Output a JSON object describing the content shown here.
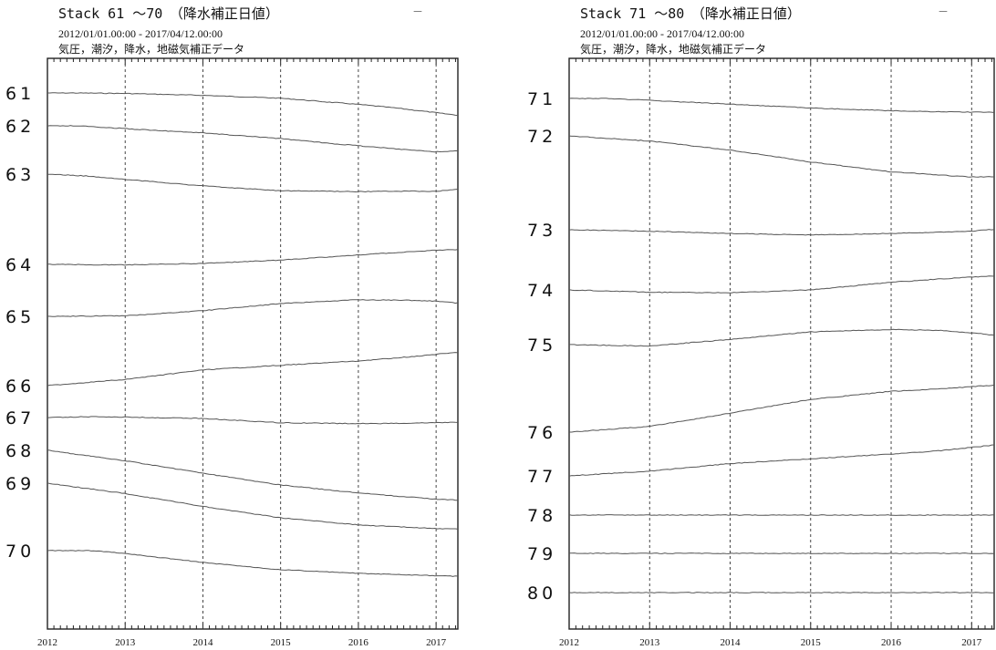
{
  "chart_data": [
    {
      "type": "line",
      "title": "Stack 61 ～70　（降水補正日値）",
      "period": "2012/01/01.00:00 - 2017/04/12.00:00",
      "corrections": "気圧，潮汐，降水，地磁気補正データ",
      "corner_mark": "－",
      "x_tick_labels": [
        "2012",
        "2013",
        "2014",
        "2015",
        "2016",
        "2017"
      ],
      "x_range": [
        2012.0,
        2017.28
      ],
      "y_axis": "none",
      "vertical_grid": "dashed at year boundaries 2013-2017",
      "series": [
        {
          "name": "61",
          "points": [
            [
              2012,
              0.0
            ],
            [
              2012.4,
              0.0
            ],
            [
              2013,
              -0.1
            ],
            [
              2014,
              -0.5
            ],
            [
              2015,
              -1.1
            ],
            [
              2015.6,
              -1.9
            ],
            [
              2016,
              -2.4
            ],
            [
              2016.5,
              -3.2
            ],
            [
              2017.28,
              -4.7
            ]
          ]
        },
        {
          "name": "62",
          "points": [
            [
              2012,
              0.0
            ],
            [
              2012.4,
              0.0
            ],
            [
              2013,
              -0.6
            ],
            [
              2014,
              -1.5
            ],
            [
              2015,
              -2.7
            ],
            [
              2015.7,
              -3.8
            ],
            [
              2016,
              -4.2
            ],
            [
              2016.6,
              -5.0
            ],
            [
              2017,
              -5.5
            ],
            [
              2017.28,
              -5.3
            ]
          ]
        },
        {
          "name": "63",
          "points": [
            [
              2012,
              0.0
            ],
            [
              2012.5,
              -0.4
            ],
            [
              2013,
              -1.1
            ],
            [
              2014,
              -2.5
            ],
            [
              2015,
              -3.5
            ],
            [
              2016,
              -3.7
            ],
            [
              2016.6,
              -3.6
            ],
            [
              2017,
              -3.6
            ],
            [
              2017.28,
              -3.2
            ]
          ]
        },
        {
          "name": "64",
          "points": [
            [
              2012,
              0.0
            ],
            [
              2013,
              -0.1
            ],
            [
              2014,
              0.2
            ],
            [
              2015,
              0.9
            ],
            [
              2016,
              2.0
            ],
            [
              2016.5,
              2.5
            ],
            [
              2017,
              3.0
            ],
            [
              2017.28,
              3.1
            ]
          ]
        },
        {
          "name": "65",
          "points": [
            [
              2012,
              0.0
            ],
            [
              2013,
              0.1
            ],
            [
              2014,
              1.2
            ],
            [
              2015,
              2.7
            ],
            [
              2016,
              3.5
            ],
            [
              2016.6,
              3.4
            ],
            [
              2017,
              3.2
            ],
            [
              2017.28,
              2.8
            ]
          ]
        },
        {
          "name": "66",
          "points": [
            [
              2012,
              0.0
            ],
            [
              2013,
              1.3
            ],
            [
              2014,
              3.3
            ],
            [
              2015,
              4.3
            ],
            [
              2016,
              5.2
            ],
            [
              2016.6,
              6.0
            ],
            [
              2017,
              6.6
            ],
            [
              2017.28,
              7.0
            ]
          ]
        },
        {
          "name": "67",
          "points": [
            [
              2012,
              0.0
            ],
            [
              2012.6,
              0.2
            ],
            [
              2013,
              0.1
            ],
            [
              2014,
              -0.2
            ],
            [
              2015,
              -1.1
            ],
            [
              2016,
              -1.3
            ],
            [
              2016.6,
              -1.2
            ],
            [
              2017,
              -1.1
            ],
            [
              2017.28,
              -1.0
            ]
          ]
        },
        {
          "name": "68",
          "points": [
            [
              2012,
              0.0
            ],
            [
              2013,
              -2.2
            ],
            [
              2014,
              -4.8
            ],
            [
              2015,
              -7.3
            ],
            [
              2016,
              -9.0
            ],
            [
              2017,
              -10.3
            ],
            [
              2017.28,
              -10.5
            ]
          ]
        },
        {
          "name": "69",
          "points": [
            [
              2012,
              0.0
            ],
            [
              2013,
              -2.2
            ],
            [
              2014,
              -4.9
            ],
            [
              2015,
              -7.3
            ],
            [
              2016,
              -8.8
            ],
            [
              2017,
              -9.6
            ],
            [
              2017.28,
              -9.7
            ]
          ]
        },
        {
          "name": "70",
          "points": [
            [
              2012,
              0.0
            ],
            [
              2012.6,
              0.0
            ],
            [
              2013,
              -0.6
            ],
            [
              2014,
              -2.5
            ],
            [
              2015,
              -4.0
            ],
            [
              2016,
              -4.8
            ],
            [
              2017,
              -5.3
            ],
            [
              2017.28,
              -5.4
            ]
          ]
        }
      ]
    },
    {
      "type": "line",
      "title": "Stack 71 ～80　（降水補正日値）",
      "period": "2012/01/01.00:00 - 2017/04/12.00:00",
      "corrections": "気圧，潮汐，降水，地磁気補正データ",
      "corner_mark": "－",
      "x_tick_labels": [
        "2012",
        "2013",
        "2014",
        "2015",
        "2016",
        "2017"
      ],
      "x_range": [
        2012.0,
        2017.28
      ],
      "y_axis": "none",
      "vertical_grid": "dashed at year boundaries 2013-2017",
      "series": [
        {
          "name": "71",
          "points": [
            [
              2012,
              0.0
            ],
            [
              2012.5,
              0.0
            ],
            [
              2013,
              -0.4
            ],
            [
              2014,
              -1.2
            ],
            [
              2015,
              -2.0
            ],
            [
              2016,
              -2.6
            ],
            [
              2016.5,
              -2.8
            ],
            [
              2017,
              -2.9
            ],
            [
              2017.28,
              -2.9
            ]
          ]
        },
        {
          "name": "72",
          "points": [
            [
              2012,
              0.0
            ],
            [
              2013,
              -1.1
            ],
            [
              2014,
              -3.0
            ],
            [
              2015,
              -5.5
            ],
            [
              2016,
              -7.6
            ],
            [
              2017,
              -8.7
            ],
            [
              2017.28,
              -8.6
            ]
          ]
        },
        {
          "name": "73",
          "points": [
            [
              2012,
              0.0
            ],
            [
              2013,
              -0.3
            ],
            [
              2014,
              -0.8
            ],
            [
              2015,
              -1.1
            ],
            [
              2016,
              -0.8
            ],
            [
              2017,
              -0.3
            ],
            [
              2017.28,
              0.1
            ]
          ]
        },
        {
          "name": "74",
          "points": [
            [
              2012,
              0.0
            ],
            [
              2013,
              -0.5
            ],
            [
              2014,
              -0.6
            ],
            [
              2015,
              0.0
            ],
            [
              2016,
              1.6
            ],
            [
              2016.6,
              2.3
            ],
            [
              2017,
              2.7
            ],
            [
              2017.28,
              2.9
            ]
          ]
        },
        {
          "name": "75",
          "points": [
            [
              2012,
              0.0
            ],
            [
              2013,
              -0.3
            ],
            [
              2014,
              1.1
            ],
            [
              2015,
              2.7
            ],
            [
              2016,
              3.2
            ],
            [
              2016.6,
              3.0
            ],
            [
              2017,
              2.5
            ],
            [
              2017.28,
              2.0
            ]
          ]
        },
        {
          "name": "76",
          "points": [
            [
              2012,
              0.0
            ],
            [
              2013,
              1.2
            ],
            [
              2014,
              4.0
            ],
            [
              2015,
              6.9
            ],
            [
              2016,
              8.6
            ],
            [
              2016.6,
              9.1
            ],
            [
              2017,
              9.6
            ],
            [
              2017.28,
              9.9
            ]
          ]
        },
        {
          "name": "77",
          "points": [
            [
              2012,
              0.0
            ],
            [
              2013,
              1.0
            ],
            [
              2014,
              2.6
            ],
            [
              2015,
              3.6
            ],
            [
              2016,
              4.6
            ],
            [
              2016.6,
              5.3
            ],
            [
              2017,
              6.0
            ],
            [
              2017.28,
              6.5
            ]
          ]
        },
        {
          "name": "78",
          "points": [
            [
              2012,
              0.0
            ],
            [
              2017.28,
              0.0
            ]
          ]
        },
        {
          "name": "79",
          "points": [
            [
              2012,
              0.0
            ],
            [
              2017.28,
              0.0
            ]
          ]
        },
        {
          "name": "80",
          "points": [
            [
              2012,
              0.0
            ],
            [
              2017.28,
              0.0
            ]
          ]
        }
      ]
    }
  ]
}
